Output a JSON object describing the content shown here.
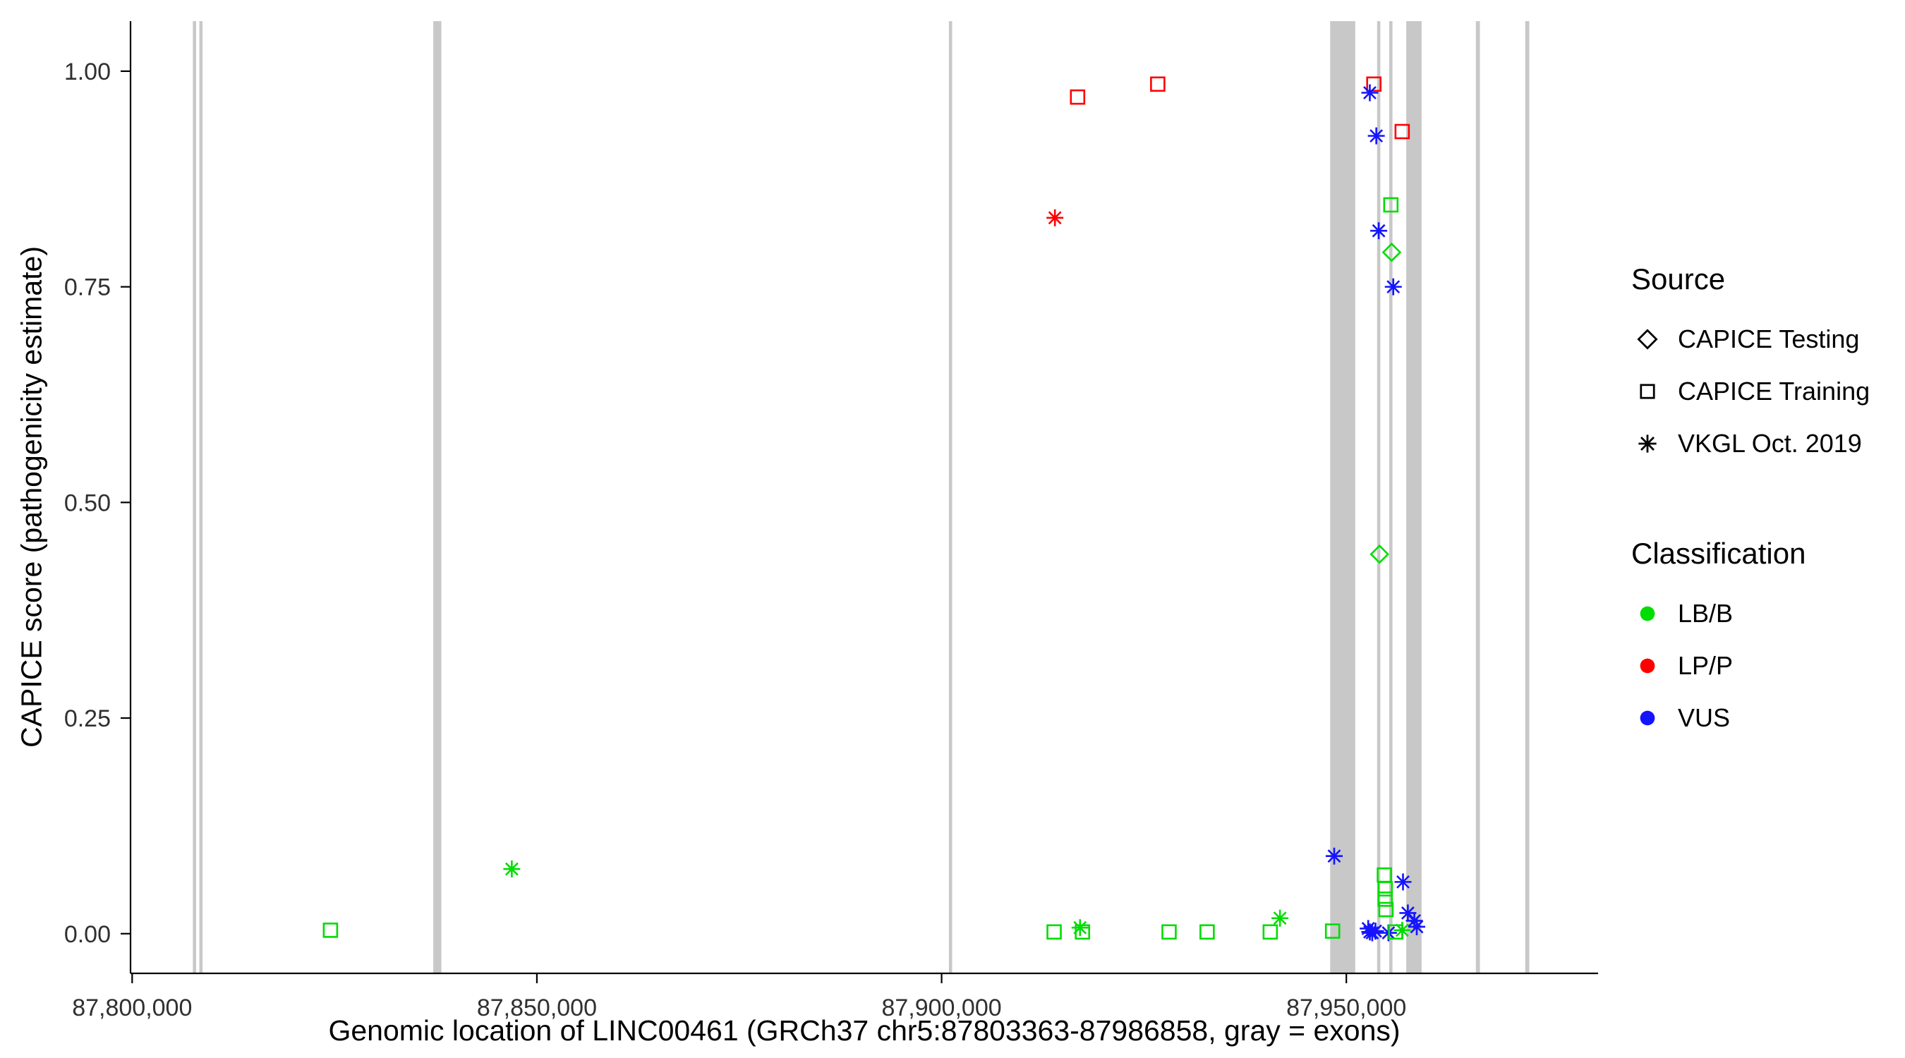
{
  "figure": {
    "background": "#FFFFFF"
  },
  "axes": {
    "y_title": "CAPICE score (pathogenicity estimate)",
    "x_title": "Genomic location of LINC00461 (GRCh37 chr5:87803363-87986858, gray = exons)",
    "y_ticks": [
      {
        "value": 0.0,
        "label": "0.00"
      },
      {
        "value": 0.25,
        "label": "0.25"
      },
      {
        "value": 0.5,
        "label": "0.50"
      },
      {
        "value": 0.75,
        "label": "0.75"
      },
      {
        "value": 1.0,
        "label": "1.00"
      }
    ],
    "x_ticks": [
      {
        "value": 87800000,
        "label": "87,800,000"
      },
      {
        "value": 87850000,
        "label": "87,850,000"
      },
      {
        "value": 87900000,
        "label": "87,900,000"
      },
      {
        "value": 87950000,
        "label": "87,950,000"
      }
    ]
  },
  "legend": {
    "source": {
      "title": "Source",
      "items": [
        {
          "label": "CAPICE Testing",
          "marker": "open-diamond"
        },
        {
          "label": "CAPICE Training",
          "marker": "open-square"
        },
        {
          "label": "VKGL Oct. 2019",
          "marker": "asterisk"
        }
      ]
    },
    "classification": {
      "title": "Classification",
      "items": [
        {
          "label": "LB/B",
          "color": "#00DD00"
        },
        {
          "label": "LP/P",
          "color": "#FF0000"
        },
        {
          "label": "VUS",
          "color": "#1414FF"
        }
      ]
    }
  },
  "chart_data": {
    "type": "scatter",
    "title": "",
    "xlabel": "Genomic location of LINC00461 (GRCh37 chr5:87803363-87986858, gray = exons)",
    "ylabel": "CAPICE score (pathogenicity estimate)",
    "xlim": [
      87799800,
      87981100
    ],
    "ylim": [
      -0.046,
      1.058
    ],
    "grid": "off",
    "legend_position": "right",
    "exon_color": "#C8C8C8",
    "axis_color": "#000000",
    "tick_label_color": "#303030",
    "marker_shapes": {
      "CAPICE Testing": "open-diamond",
      "CAPICE Training": "open-square",
      "VKGL Oct. 2019": "asterisk"
    },
    "class_colors": {
      "LB/B": "#00DD00",
      "LP/P": "#FF0000",
      "VUS": "#1414FF"
    },
    "exons": [
      [
        87807500,
        87807900
      ],
      [
        87808300,
        87808700
      ],
      [
        87837200,
        87838200
      ],
      [
        87900900,
        87901300
      ],
      [
        87948000,
        87951100
      ],
      [
        87953800,
        87954200
      ],
      [
        87955300,
        87955700
      ],
      [
        87957400,
        87959300
      ],
      [
        87966000,
        87966500
      ],
      [
        87972100,
        87972600
      ]
    ],
    "points": [
      {
        "x": 87916800,
        "y": 0.97,
        "source": "CAPICE Training",
        "classification": "LP/P"
      },
      {
        "x": 87926700,
        "y": 0.985,
        "source": "CAPICE Training",
        "classification": "LP/P"
      },
      {
        "x": 87914000,
        "y": 0.83,
        "source": "VKGL Oct. 2019",
        "classification": "LP/P"
      },
      {
        "x": 87953400,
        "y": 0.985,
        "source": "CAPICE Training",
        "classification": "LP/P"
      },
      {
        "x": 87952900,
        "y": 0.975,
        "source": "VKGL Oct. 2019",
        "classification": "VUS"
      },
      {
        "x": 87953700,
        "y": 0.925,
        "source": "VKGL Oct. 2019",
        "classification": "VUS"
      },
      {
        "x": 87956900,
        "y": 0.93,
        "source": "CAPICE Training",
        "classification": "LP/P"
      },
      {
        "x": 87955500,
        "y": 0.845,
        "source": "CAPICE Training",
        "classification": "LB/B"
      },
      {
        "x": 87954000,
        "y": 0.815,
        "source": "VKGL Oct. 2019",
        "classification": "VUS"
      },
      {
        "x": 87955600,
        "y": 0.79,
        "source": "CAPICE Testing",
        "classification": "LB/B"
      },
      {
        "x": 87955800,
        "y": 0.75,
        "source": "VKGL Oct. 2019",
        "classification": "VUS"
      },
      {
        "x": 87954100,
        "y": 0.44,
        "source": "CAPICE Testing",
        "classification": "LB/B"
      },
      {
        "x": 87846900,
        "y": 0.075,
        "source": "VKGL Oct. 2019",
        "classification": "LB/B"
      },
      {
        "x": 87824500,
        "y": 0.004,
        "source": "CAPICE Training",
        "classification": "LB/B"
      },
      {
        "x": 87948500,
        "y": 0.09,
        "source": "VKGL Oct. 2019",
        "classification": "VUS"
      },
      {
        "x": 87913900,
        "y": 0.002,
        "source": "CAPICE Training",
        "classification": "LB/B"
      },
      {
        "x": 87917100,
        "y": 0.007,
        "source": "VKGL Oct. 2019",
        "classification": "LB/B"
      },
      {
        "x": 87917400,
        "y": 0.002,
        "source": "CAPICE Training",
        "classification": "LB/B"
      },
      {
        "x": 87928100,
        "y": 0.002,
        "source": "CAPICE Training",
        "classification": "LB/B"
      },
      {
        "x": 87932800,
        "y": 0.002,
        "source": "CAPICE Training",
        "classification": "LB/B"
      },
      {
        "x": 87940600,
        "y": 0.002,
        "source": "CAPICE Training",
        "classification": "LB/B"
      },
      {
        "x": 87941800,
        "y": 0.018,
        "source": "VKGL Oct. 2019",
        "classification": "LB/B"
      },
      {
        "x": 87948300,
        "y": 0.003,
        "source": "CAPICE Training",
        "classification": "LB/B"
      },
      {
        "x": 87954700,
        "y": 0.068,
        "source": "CAPICE Training",
        "classification": "LB/B"
      },
      {
        "x": 87954800,
        "y": 0.052,
        "source": "CAPICE Training",
        "classification": "LB/B"
      },
      {
        "x": 87954800,
        "y": 0.04,
        "source": "CAPICE Training",
        "classification": "LB/B"
      },
      {
        "x": 87954900,
        "y": 0.028,
        "source": "CAPICE Training",
        "classification": "LB/B"
      },
      {
        "x": 87957000,
        "y": 0.06,
        "source": "VKGL Oct. 2019",
        "classification": "VUS"
      },
      {
        "x": 87957600,
        "y": 0.024,
        "source": "VKGL Oct. 2019",
        "classification": "VUS"
      },
      {
        "x": 87958400,
        "y": 0.015,
        "source": "VKGL Oct. 2019",
        "classification": "VUS"
      },
      {
        "x": 87958700,
        "y": 0.008,
        "source": "VKGL Oct. 2019",
        "classification": "VUS"
      },
      {
        "x": 87952700,
        "y": 0.006,
        "source": "VKGL Oct. 2019",
        "classification": "VUS"
      },
      {
        "x": 87952900,
        "y": 0.002,
        "source": "VKGL Oct. 2019",
        "classification": "VUS"
      },
      {
        "x": 87953200,
        "y": 0.001,
        "source": "VKGL Oct. 2019",
        "classification": "VUS"
      },
      {
        "x": 87953600,
        "y": 0.003,
        "source": "VKGL Oct. 2019",
        "classification": "VUS"
      },
      {
        "x": 87955200,
        "y": 0.001,
        "source": "VKGL Oct. 2019",
        "classification": "VUS"
      },
      {
        "x": 87956100,
        "y": 0.002,
        "source": "CAPICE Training",
        "classification": "LB/B"
      },
      {
        "x": 87956900,
        "y": 0.004,
        "source": "VKGL Oct. 2019",
        "classification": "LB/B"
      }
    ]
  }
}
